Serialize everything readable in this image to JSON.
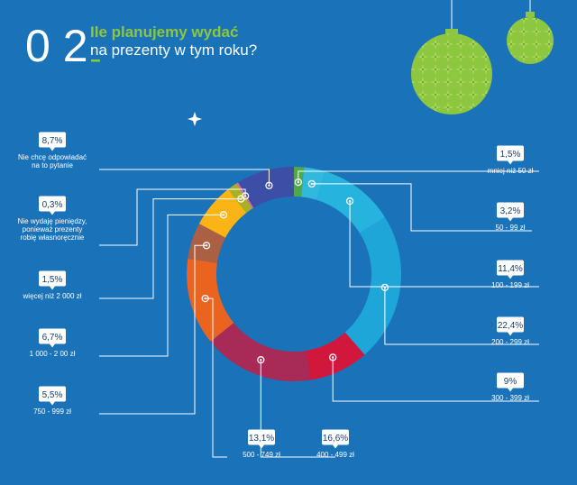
{
  "header": {
    "number": "0 2",
    "title_line1": "Ile planujemy wydać",
    "title_line2": "na prezenty w tym roku?"
  },
  "colors": {
    "background": "#1a72b9",
    "accent_green": "#8dc63f",
    "label_box": "#ffffff",
    "label_text": "#1b3d6d",
    "caption_text": "#ffffff"
  },
  "chart_data": {
    "type": "pie",
    "subtype": "donut",
    "title": "Ile planujemy wydać na prezenty w tym roku?",
    "unit": "%",
    "slices": [
      {
        "category": "mniej niż 50 zł",
        "value": 1.5,
        "value_label": "1,5%",
        "color": "#4ea948"
      },
      {
        "category": "50 - 99 zł",
        "value": 3.2,
        "value_label": "3,2%",
        "color": "#32b7dd"
      },
      {
        "category": "100 - 199 zł",
        "value": 11.4,
        "value_label": "11,4%",
        "color": "#26b4de"
      },
      {
        "category": "200 - 299 zł",
        "value": 22.4,
        "value_label": "22,4%",
        "color": "#1fa6d9"
      },
      {
        "category": "300 - 399 zł",
        "value": 9,
        "value_label": "9%",
        "color": "#d2173d"
      },
      {
        "category": "400 - 499 zł",
        "value": 16.6,
        "value_label": "16,6%",
        "color": "#a72a57"
      },
      {
        "category": "500 - 749 zł",
        "value": 13.1,
        "value_label": "13,1%",
        "color": "#ea6420"
      },
      {
        "category": "750 - 999 zł",
        "value": 5.5,
        "value_label": "5,5%",
        "color": "#ab6044"
      },
      {
        "category": "1 000 - 2 00 zł",
        "value": 6.7,
        "value_label": "6,7%",
        "color": "#fbb415"
      },
      {
        "category": "więcej niż 2 000 zł",
        "value": 1.5,
        "value_label": "1,5%",
        "color": "#aab023"
      },
      {
        "category": "Nie wydaję pieniędzy, ponieważ prezenty robię własnoręcznie",
        "value": 0.3,
        "value_label": "0,3%",
        "color": "#e36aa0"
      },
      {
        "category": "Nie chcę odpowiadać na to pytanie",
        "value": 8.7,
        "value_label": "8,7%",
        "color": "#3d4ea6"
      }
    ]
  }
}
